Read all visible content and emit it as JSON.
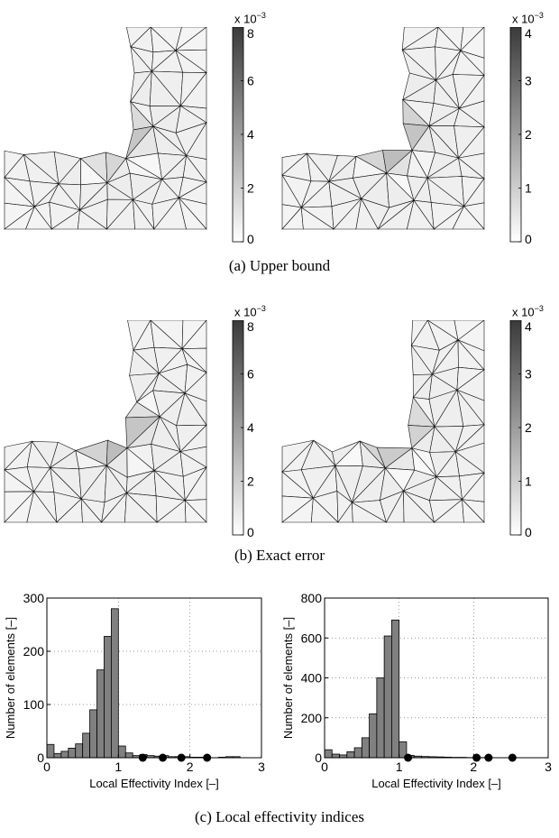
{
  "captions": {
    "a": "(a) Upper bound",
    "b": "(b) Exact error",
    "c": "(c) Local effectivity indices"
  },
  "colorbars": {
    "exponent_label": "x 10",
    "exponent_power": "−3",
    "left_ticks": [
      "0",
      "2",
      "4",
      "6",
      "8"
    ],
    "right_ticks": [
      "0",
      "1",
      "2",
      "3",
      "4"
    ]
  },
  "mesh_panels": [
    {
      "row": "a",
      "side": "left",
      "cbar_max": 8
    },
    {
      "row": "a",
      "side": "right",
      "cbar_max": 4
    },
    {
      "row": "b",
      "side": "left",
      "cbar_max": 8
    },
    {
      "row": "b",
      "side": "right",
      "cbar_max": 4
    }
  ],
  "chart_data": [
    {
      "type": "bar",
      "xlabel": "Local Effectivity Index [–]",
      "ylabel": "Number of elements [–]",
      "xlim": [
        0,
        3
      ],
      "ylim": [
        0,
        300
      ],
      "xticks": [
        "0",
        "1",
        "2",
        "3"
      ],
      "yticks": [
        "0",
        "100",
        "200",
        "300"
      ],
      "grid": "dotted",
      "bin_width": 0.1,
      "bins": [
        0.0,
        0.1,
        0.2,
        0.3,
        0.4,
        0.5,
        0.6,
        0.7,
        0.8,
        0.9,
        1.0,
        1.1,
        1.2,
        1.3,
        1.4,
        1.5,
        1.6,
        1.7,
        1.8,
        1.9,
        2.0,
        2.1,
        2.2,
        2.3,
        2.4,
        2.5,
        2.6,
        2.7,
        2.8,
        2.9
      ],
      "values": [
        25,
        8,
        12,
        18,
        26,
        46,
        90,
        165,
        228,
        280,
        22,
        9,
        4,
        6,
        4,
        3,
        4,
        2,
        2,
        2,
        1,
        1,
        0,
        0,
        1,
        2,
        2,
        0,
        0,
        0
      ],
      "outlier_markers": [
        1.34,
        1.62,
        1.88,
        2.24
      ]
    },
    {
      "type": "bar",
      "xlabel": "Local Effectivity Index [–]",
      "ylabel": "Number of elements [–]",
      "xlim": [
        0,
        3
      ],
      "ylim": [
        0,
        800
      ],
      "xticks": [
        "0",
        "1",
        "2",
        "3"
      ],
      "yticks": [
        "0",
        "200",
        "400",
        "600",
        "800"
      ],
      "grid": "dotted",
      "bin_width": 0.1,
      "bins": [
        0.0,
        0.1,
        0.2,
        0.3,
        0.4,
        0.5,
        0.6,
        0.7,
        0.8,
        0.9,
        1.0,
        1.1,
        1.2,
        1.3,
        1.4,
        1.5,
        1.6,
        1.7,
        1.8,
        1.9,
        2.0,
        2.1,
        2.2,
        2.3,
        2.4,
        2.5,
        2.6,
        2.7,
        2.8,
        2.9
      ],
      "values": [
        40,
        18,
        14,
        30,
        50,
        100,
        220,
        400,
        610,
        690,
        80,
        12,
        8,
        6,
        5,
        4,
        3,
        2,
        2,
        1,
        1,
        1,
        0,
        0,
        0,
        0,
        0,
        0,
        0,
        0
      ],
      "outlier_markers": [
        1.12,
        2.04,
        2.2,
        2.52
      ]
    }
  ]
}
